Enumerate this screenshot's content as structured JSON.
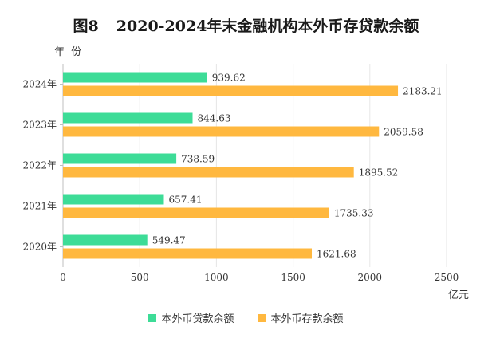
{
  "chart_data": {
    "type": "bar",
    "orientation": "horizontal",
    "title_number": "图8",
    "title": "2020-2024年末金融机构本外币存贷款余额",
    "ylabel": "年 份",
    "xlabel": "亿元",
    "categories": [
      "2024年",
      "2023年",
      "2022年",
      "2021年",
      "2020年"
    ],
    "series": [
      {
        "name": "本外币贷款余额",
        "color": "#3ddc97",
        "values": [
          939.62,
          844.63,
          738.59,
          657.41,
          549.47
        ],
        "labels": [
          "939.62",
          "844.63",
          "738.59",
          "657.41",
          "549.47"
        ]
      },
      {
        "name": "本外币存款余额",
        "color": "#ffb83f",
        "values": [
          2183.21,
          2059.58,
          1895.52,
          1735.33,
          1621.68
        ],
        "labels": [
          "2183.21",
          "2059.58",
          "1895.52",
          "1735.33",
          "1621.68"
        ]
      }
    ],
    "xlim": [
      0,
      2500
    ],
    "x_ticks": [
      0,
      500,
      1000,
      1500,
      2000,
      2500
    ],
    "x_tick_labels": [
      "0",
      "500",
      "1000",
      "1500",
      "2000",
      "2500"
    ],
    "grid": true,
    "legend_position": "bottom"
  }
}
